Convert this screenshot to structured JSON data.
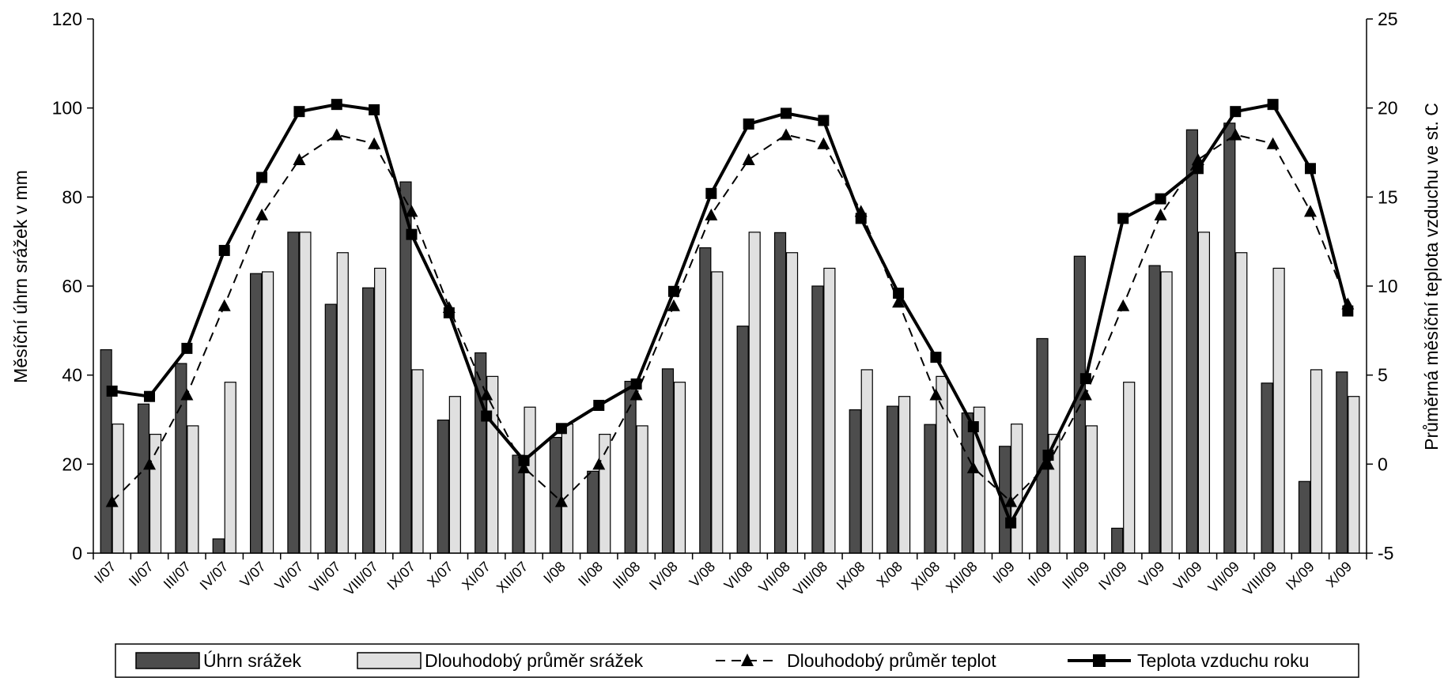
{
  "chart_data": {
    "type": "bar",
    "categories": [
      "I/07",
      "II/07",
      "III/07",
      "IV/07",
      "V/07",
      "VI/07",
      "VII/07",
      "VIII/07",
      "IX/07",
      "X/07",
      "XI/07",
      "XII/07",
      "I/08",
      "II/08",
      "III/08",
      "IV/08",
      "V/08",
      "VI/08",
      "VII/08",
      "VIII/08",
      "IX/08",
      "X/08",
      "XI/08",
      "XII/08",
      "I/09",
      "II/09",
      "III/09",
      "IV/09",
      "V/09",
      "VI/09",
      "VII/09",
      "VIII/09",
      "IX/09",
      "X/09"
    ],
    "ylabel": "Měsíční úhrn srážek v mm",
    "y2label": "Průměrná měsíční teplota vzduchu ve st. C",
    "ylim": [
      0,
      120
    ],
    "y2lim": [
      -5,
      25
    ],
    "yticks": [
      "0",
      "20",
      "40",
      "60",
      "80",
      "100",
      "120"
    ],
    "y2ticks": [
      "-5",
      "0",
      "5",
      "10",
      "15",
      "20",
      "25"
    ],
    "legend_position": "bottom",
    "series": [
      {
        "name": "Úhrn srážek",
        "type": "bar",
        "axis": "left",
        "color": "#4d4d4d",
        "values": [
          45.7,
          33.5,
          42.6,
          3.2,
          62.8,
          72.1,
          55.9,
          59.6,
          83.4,
          29.9,
          45.0,
          22.0,
          26.0,
          18.4,
          38.6,
          41.4,
          68.6,
          51.0,
          72.0,
          60.0,
          32.2,
          33.0,
          28.9,
          31.5,
          24.0,
          48.2,
          66.7,
          5.6,
          64.6,
          95.1,
          96.6,
          38.2,
          16.1,
          40.7
        ]
      },
      {
        "name": "Dlouhodobý průměr srážek",
        "type": "bar",
        "axis": "left",
        "color": "#e0e0e0",
        "values": [
          29.0,
          26.7,
          28.6,
          38.4,
          63.2,
          72.1,
          67.5,
          64.0,
          41.2,
          35.2,
          39.7,
          32.8,
          29.0,
          26.7,
          28.6,
          38.4,
          63.2,
          72.1,
          67.5,
          64.0,
          41.2,
          35.2,
          39.7,
          32.8,
          29.0,
          26.7,
          28.6,
          38.4,
          63.2,
          72.1,
          67.5,
          64.0,
          41.2,
          35.2
        ]
      },
      {
        "name": "Dlouhodobý průměr teplot",
        "type": "line",
        "axis": "right",
        "style": "dashed",
        "marker": "triangle",
        "values": [
          -2.1,
          0.0,
          3.9,
          8.9,
          14.0,
          17.1,
          18.5,
          18.0,
          14.2,
          8.8,
          3.9,
          -0.2,
          -2.1,
          0.0,
          3.9,
          8.9,
          14.0,
          17.1,
          18.5,
          18.0,
          14.2,
          9.1,
          3.9,
          -0.2,
          -2.1,
          0.0,
          3.9,
          8.9,
          14.0,
          17.1,
          18.5,
          18.0,
          14.2,
          9.0
        ]
      },
      {
        "name": "Teplota vzduchu roku",
        "type": "line",
        "axis": "right",
        "style": "solid",
        "marker": "square",
        "values": [
          4.1,
          3.8,
          6.5,
          12.0,
          16.1,
          19.8,
          20.2,
          19.9,
          12.9,
          8.5,
          2.7,
          0.2,
          2.0,
          3.3,
          4.5,
          9.7,
          15.2,
          19.1,
          19.7,
          19.3,
          13.8,
          9.6,
          6.0,
          2.1,
          -3.3,
          0.5,
          4.8,
          13.8,
          14.9,
          16.6,
          19.8,
          20.2,
          16.6,
          8.6
        ]
      }
    ]
  }
}
